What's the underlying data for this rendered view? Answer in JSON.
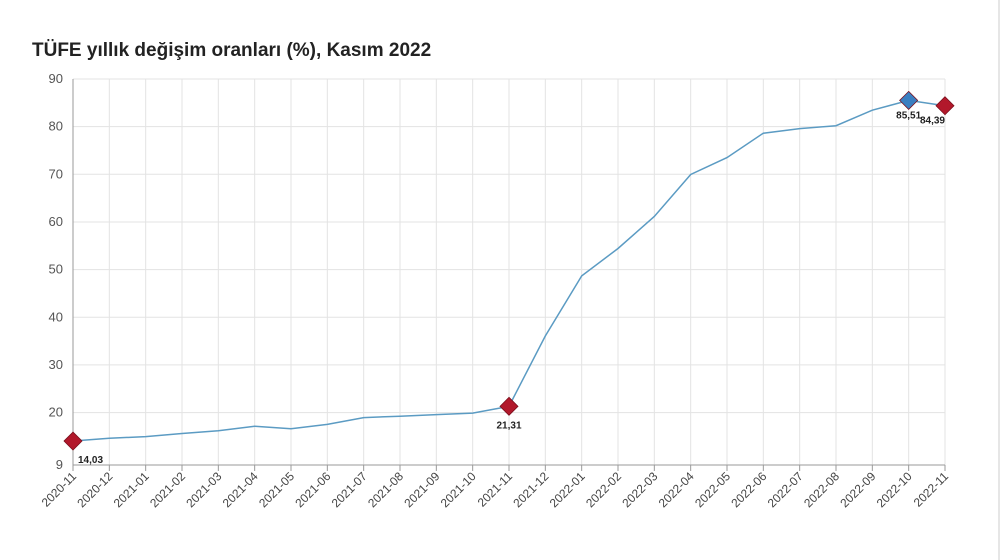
{
  "chart_data": {
    "type": "line",
    "title": "TÜFE yıllık değişim oranları (%), Kasım 2022",
    "xlabel": "",
    "ylabel": "",
    "ylim": [
      9,
      90
    ],
    "yticks": [
      "9",
      "20",
      "30",
      "40",
      "50",
      "60",
      "70",
      "80",
      "90"
    ],
    "grid": true,
    "categories": [
      "2020-11",
      "2020-12",
      "2021-01",
      "2021-02",
      "2021-03",
      "2021-04",
      "2021-05",
      "2021-06",
      "2021-07",
      "2021-08",
      "2021-09",
      "2021-10",
      "2021-11",
      "2021-12",
      "2022-01",
      "2022-02",
      "2022-03",
      "2022-04",
      "2022-05",
      "2022-06",
      "2022-07",
      "2022-08",
      "2022-09",
      "2022-10",
      "2022-11"
    ],
    "series": [
      {
        "values": [
          14.03,
          14.6,
          14.97,
          15.61,
          16.19,
          17.14,
          16.59,
          17.53,
          18.95,
          19.25,
          19.58,
          19.89,
          21.31,
          36.08,
          48.69,
          54.44,
          61.14,
          69.97,
          73.5,
          78.62,
          79.6,
          80.21,
          83.45,
          85.51,
          84.39
        ],
        "color": "#5b9bc3"
      }
    ],
    "annotations": [
      {
        "index": 0,
        "label": "14,03",
        "marker_color": "#b2182b"
      },
      {
        "index": 12,
        "label": "21,31",
        "marker_color": "#b2182b"
      },
      {
        "index": 23,
        "label": "85,51",
        "marker_color": "#3a7fc1"
      },
      {
        "index": 24,
        "label": "84,39",
        "marker_color": "#b2182b"
      }
    ]
  }
}
